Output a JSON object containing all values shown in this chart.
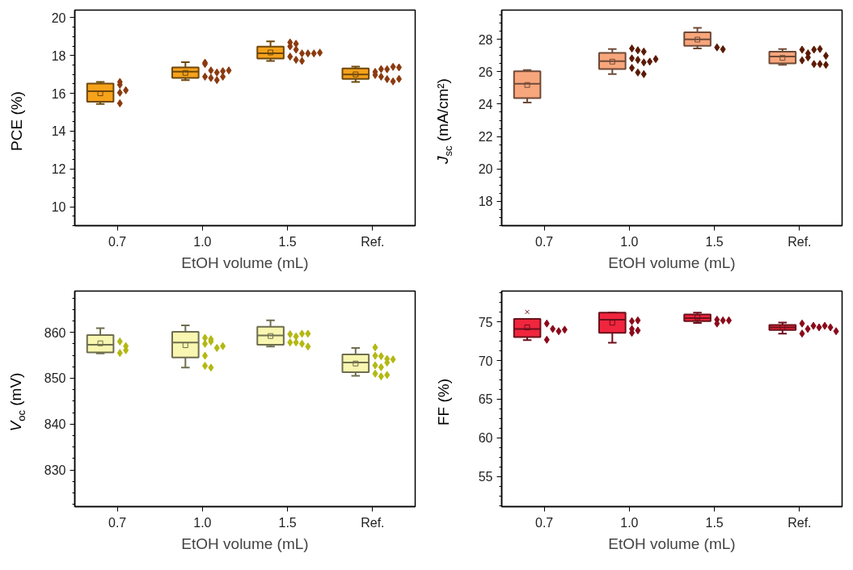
{
  "chart_data": [
    {
      "type": "box",
      "xlabel": "EtOH volume (mL)",
      "ylabel": "PCE (%)",
      "categories": [
        "0.7",
        "1.0",
        "1.5",
        "Ref."
      ],
      "ylim": [
        9,
        20.4
      ],
      "yticks": [
        10,
        12,
        14,
        16,
        18,
        20
      ],
      "grid": false,
      "series": [
        {
          "type": "box",
          "color": "#f7a21b",
          "boxes": [
            {
              "low": 15.44,
              "q1": 15.55,
              "median": 16.11,
              "q3": 16.51,
              "high": 16.6,
              "mean": 16.0
            },
            {
              "low": 16.7,
              "q1": 16.81,
              "median": 17.14,
              "q3": 17.37,
              "high": 17.65,
              "mean": 17.08
            },
            {
              "low": 17.71,
              "q1": 17.84,
              "median": 18.12,
              "q3": 18.47,
              "high": 18.75,
              "mean": 18.16
            },
            {
              "low": 16.6,
              "q1": 16.76,
              "median": 17.0,
              "q3": 17.31,
              "high": 17.41,
              "mean": 17.0
            }
          ]
        },
        {
          "type": "scatter",
          "color": "#8b3a0f",
          "marker": "diamond",
          "x": [
            "0.7",
            "0.7",
            "0.7",
            "0.7",
            "0.7",
            "1.0",
            "1.0",
            "1.0",
            "1.0",
            "1.0",
            "1.0",
            "1.0",
            "1.0",
            "1.0",
            "1.0",
            "1.5",
            "1.5",
            "1.5",
            "1.5",
            "1.5",
            "1.5",
            "1.5",
            "1.5",
            "1.5",
            "1.5",
            "1.5",
            "Ref.",
            "Ref.",
            "Ref.",
            "Ref.",
            "Ref.",
            "Ref.",
            "Ref.",
            "Ref.",
            "Ref.",
            "Ref."
          ],
          "values": [
            16.6,
            16.45,
            15.47,
            16.16,
            16.03,
            17.55,
            17.62,
            17.21,
            17.1,
            16.88,
            16.81,
            17.17,
            16.7,
            17.21,
            16.88,
            18.69,
            18.48,
            18.62,
            18.31,
            18.11,
            17.94,
            17.77,
            17.71,
            18.11,
            18.11,
            18.15,
            16.97,
            17.13,
            17.28,
            16.88,
            17.27,
            17.4,
            16.75,
            16.63,
            17.37,
            16.76
          ]
        }
      ]
    },
    {
      "type": "box",
      "xlabel": "EtOH volume (mL)",
      "ylabel": "J$_{sc}$ (mA/cm²)",
      "categories": [
        "0.7",
        "1.0",
        "1.5",
        "Ref."
      ],
      "ylim": [
        16.5,
        29.8
      ],
      "yticks": [
        18,
        20,
        22,
        24,
        26,
        28
      ],
      "grid": false,
      "series": [
        {
          "type": "box",
          "color": "#f8a67c",
          "boxes": [
            {
              "low": 24.1,
              "q1": 24.37,
              "median": 25.26,
              "q3": 26.03,
              "high": 26.1,
              "mean": 25.18
            },
            {
              "low": 25.85,
              "q1": 26.16,
              "median": 26.65,
              "q3": 27.16,
              "high": 27.4,
              "mean": 26.62
            },
            {
              "low": 27.43,
              "q1": 27.6,
              "median": 28.0,
              "q3": 28.43,
              "high": 28.7,
              "mean": 27.98
            },
            {
              "low": 26.42,
              "q1": 26.51,
              "median": 26.93,
              "q3": 27.24,
              "high": 27.4,
              "mean": 26.85
            }
          ]
        },
        {
          "type": "scatter",
          "color": "#5a1a05",
          "marker": "diamond",
          "x": [
            "1.0",
            "1.0",
            "1.0",
            "1.0",
            "1.0",
            "1.0",
            "1.0",
            "1.0",
            "1.0",
            "1.0",
            "1.0",
            "1.5",
            "1.5",
            "Ref.",
            "Ref.",
            "Ref.",
            "Ref.",
            "Ref.",
            "Ref.",
            "Ref.",
            "Ref.",
            "Ref.",
            "Ref."
          ],
          "values": [
            27.43,
            27.32,
            27.24,
            26.82,
            26.73,
            26.57,
            26.23,
            25.95,
            25.85,
            26.62,
            26.78,
            27.5,
            27.38,
            27.36,
            27.13,
            26.7,
            27.36,
            26.88,
            26.47,
            27.4,
            26.98,
            26.47,
            26.42
          ]
        }
      ]
    },
    {
      "type": "box",
      "xlabel": "EtOH volume (mL)",
      "ylabel": "V$_{oc}$ (mV)",
      "categories": [
        "0.7",
        "1.0",
        "1.5",
        "Ref."
      ],
      "ylim": [
        822,
        869
      ],
      "yticks": [
        830,
        840,
        850,
        860
      ],
      "grid": false,
      "series": [
        {
          "type": "box",
          "color": "#f8f6b0",
          "boxes": [
            {
              "low": 855.4,
              "q1": 855.6,
              "median": 857.3,
              "q3": 859.4,
              "high": 860.9,
              "mean": 857.6
            },
            {
              "low": 852.3,
              "q1": 854.5,
              "median": 857.8,
              "q3": 860.1,
              "high": 861.5,
              "mean": 857.2
            },
            {
              "low": 856.9,
              "q1": 857.3,
              "median": 859.3,
              "q3": 861.2,
              "high": 862.6,
              "mean": 859.2
            },
            {
              "low": 850.5,
              "q1": 851.3,
              "median": 853.4,
              "q3": 855.2,
              "high": 856.6,
              "mean": 853.2
            }
          ]
        },
        {
          "type": "scatter",
          "color": "#b3b812",
          "marker": "diamond",
          "x": [
            "0.7",
            "0.7",
            "0.7",
            "0.7",
            "1.0",
            "1.0",
            "1.0",
            "1.0",
            "1.0",
            "1.0",
            "1.0",
            "1.0",
            "1.0",
            "1.5",
            "1.5",
            "1.5",
            "1.5",
            "1.5",
            "1.5",
            "1.5",
            "1.5",
            "Ref.",
            "Ref.",
            "Ref.",
            "Ref.",
            "Ref.",
            "Ref.",
            "Ref.",
            "Ref.",
            "Ref.",
            "Ref.",
            "Ref."
          ],
          "values": [
            858.0,
            855.5,
            857.0,
            856.1,
            858.8,
            857.5,
            854.9,
            852.7,
            858.0,
            856.6,
            852.3,
            858.5,
            857.0,
            859.6,
            857.8,
            859.1,
            857.8,
            859.7,
            859.7,
            857.5,
            856.9,
            856.7,
            854.9,
            852.8,
            851.0,
            854.8,
            852.4,
            850.4,
            854.2,
            853.4,
            850.7,
            854.1
          ]
        }
      ]
    },
    {
      "type": "box",
      "xlabel": "EtOH volume (mL)",
      "ylabel": "FF (%)",
      "categories": [
        "0.7",
        "1.0",
        "1.5",
        "Ref."
      ],
      "ylim": [
        51.1,
        79
      ],
      "yticks": [
        55,
        60,
        65,
        70,
        75
      ],
      "grid": false,
      "series": [
        {
          "type": "box",
          "color": "#f0253e",
          "boxes": [
            {
              "low": 72.65,
              "q1": 73.05,
              "median": 74.1,
              "q3": 75.4,
              "high": 75.4,
              "mean": 74.3,
              "outliers": [
                76.3
              ]
            },
            {
              "low": 72.3,
              "q1": 73.6,
              "median": 75.3,
              "q3": 76.2,
              "high": 76.2,
              "mean": 74.9
            },
            {
              "low": 74.87,
              "q1": 75.1,
              "median": 75.5,
              "q3": 75.98,
              "high": 76.2,
              "mean": 75.6
            },
            {
              "low": 73.5,
              "q1": 73.96,
              "median": 74.3,
              "q3": 74.6,
              "high": 74.93,
              "mean": 74.3
            }
          ]
        },
        {
          "type": "scatter",
          "color": "#8a0a1a",
          "marker": "diamond",
          "x": [
            "0.7",
            "0.7",
            "0.7",
            "0.7",
            "0.7",
            "1.0",
            "1.0",
            "1.0",
            "1.0",
            "1.0",
            "1.5",
            "1.5",
            "1.5",
            "1.5",
            "Ref.",
            "Ref.",
            "Ref.",
            "Ref.",
            "Ref.",
            "Ref.",
            "Ref.",
            "Ref."
          ],
          "values": [
            74.8,
            74.1,
            73.8,
            72.7,
            74.0,
            75.1,
            74.1,
            73.6,
            75.2,
            73.9,
            75.3,
            74.8,
            75.2,
            75.2,
            74.8,
            74.1,
            73.5,
            74.5,
            74.3,
            74.5,
            74.3,
            73.8
          ]
        }
      ]
    }
  ]
}
